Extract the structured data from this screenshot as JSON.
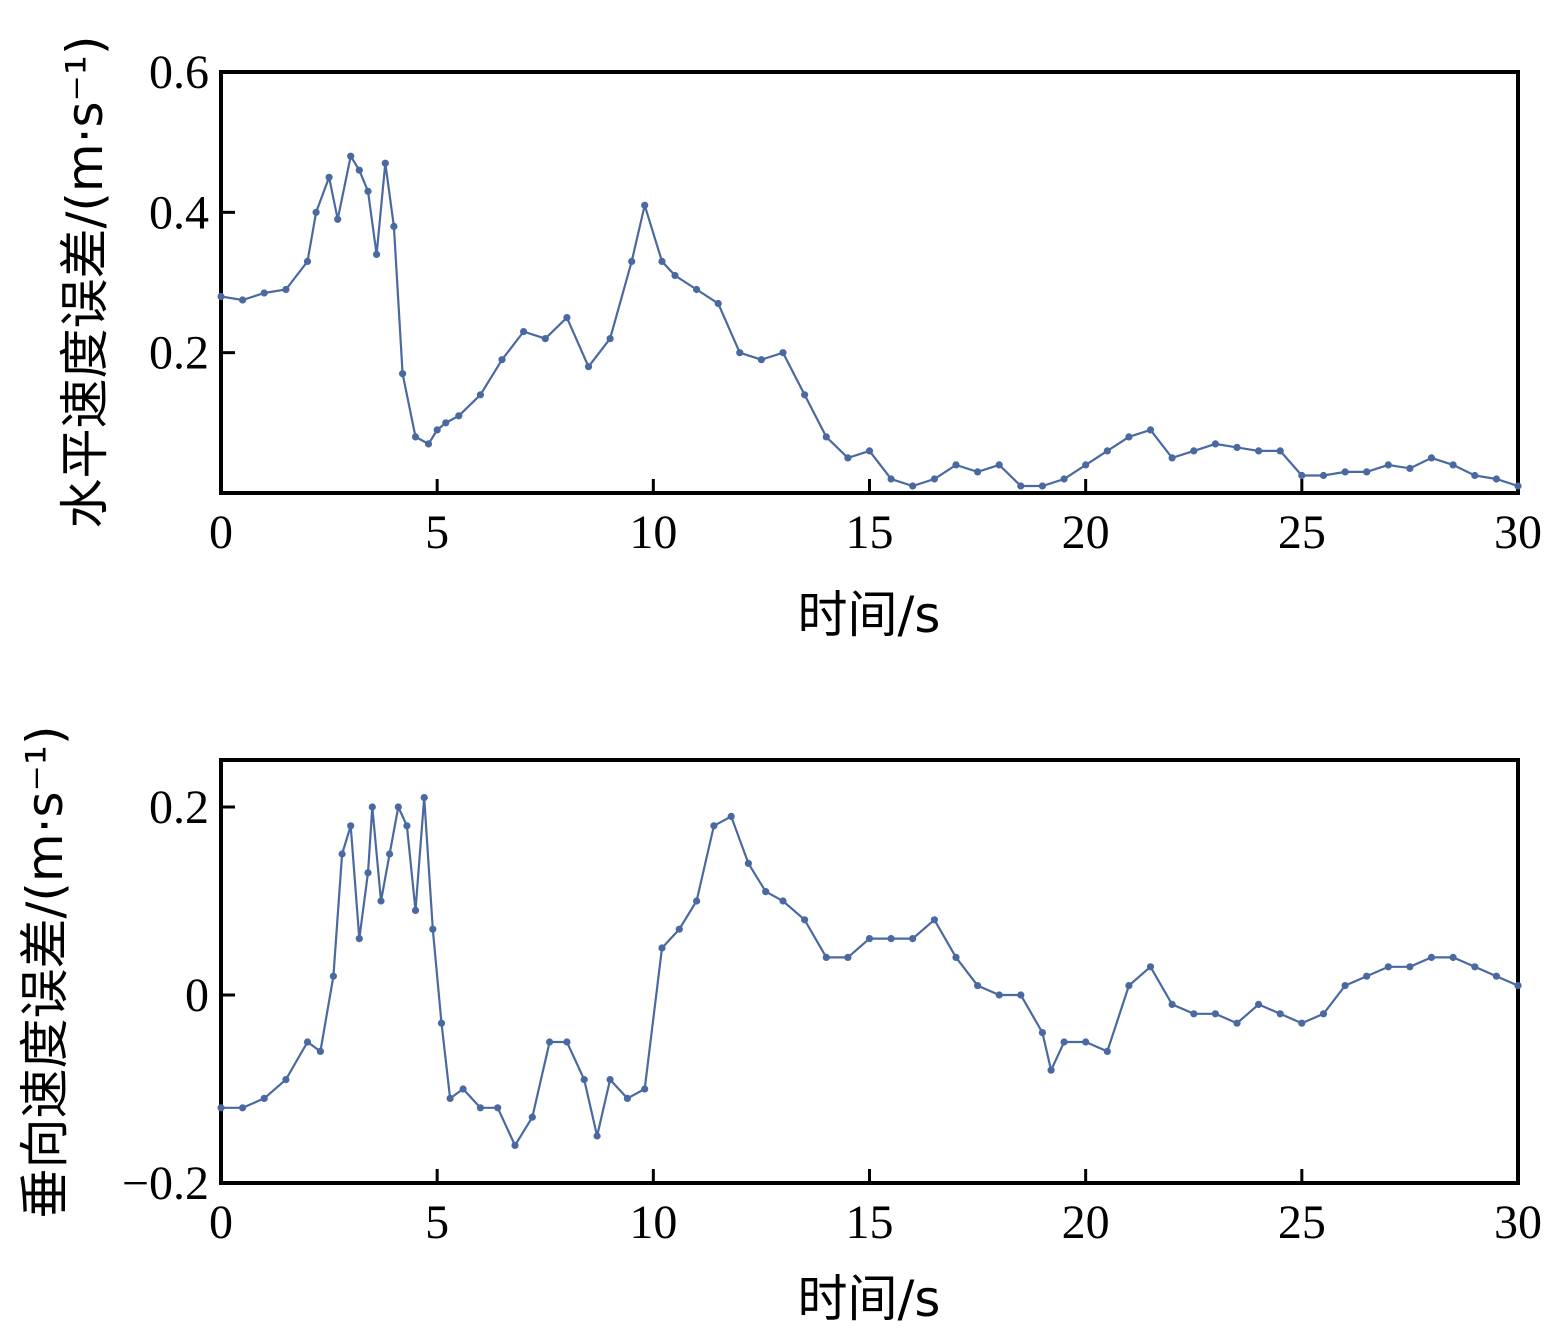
{
  "colors": {
    "series": "#4a69a0",
    "axis": "#000000",
    "background": "#ffffff"
  },
  "chart_data": [
    {
      "type": "line",
      "title": "",
      "xlabel": "时间/s",
      "ylabel": "水平速度误差/(m·s⁻¹)",
      "xlim": [
        0,
        30
      ],
      "ylim": [
        0,
        0.6
      ],
      "grid": false,
      "markers": true,
      "xticks": [
        0,
        5,
        10,
        15,
        20,
        25,
        30
      ],
      "xtick_labels": [
        "0",
        "5",
        "10",
        "15",
        "20",
        "25",
        "30"
      ],
      "yticks": [
        0.2,
        0.4,
        0.6
      ],
      "ytick_labels": [
        "0.2",
        "0.4",
        "0.6"
      ],
      "x": [
        0,
        0.5,
        1.0,
        1.5,
        2.0,
        2.2,
        2.5,
        2.7,
        3.0,
        3.2,
        3.4,
        3.6,
        3.8,
        4.0,
        4.2,
        4.5,
        4.8,
        5.0,
        5.2,
        5.5,
        6.0,
        6.5,
        7.0,
        7.5,
        8.0,
        8.5,
        9.0,
        9.5,
        9.8,
        10.2,
        10.5,
        11.0,
        11.5,
        12.0,
        12.5,
        13.0,
        13.5,
        14.0,
        14.5,
        15.0,
        15.5,
        16.0,
        16.5,
        17.0,
        17.5,
        18.0,
        18.5,
        19.0,
        19.5,
        20.0,
        20.5,
        21.0,
        21.5,
        22.0,
        22.5,
        23.0,
        23.5,
        24.0,
        24.5,
        25.0,
        25.5,
        26.0,
        26.5,
        27.0,
        27.5,
        28.0,
        28.5,
        29.0,
        29.5,
        30.0
      ],
      "y": [
        0.28,
        0.275,
        0.285,
        0.29,
        0.33,
        0.4,
        0.45,
        0.39,
        0.48,
        0.46,
        0.43,
        0.34,
        0.47,
        0.38,
        0.17,
        0.08,
        0.07,
        0.09,
        0.1,
        0.11,
        0.14,
        0.19,
        0.23,
        0.22,
        0.25,
        0.18,
        0.22,
        0.33,
        0.41,
        0.33,
        0.31,
        0.29,
        0.27,
        0.2,
        0.19,
        0.2,
        0.14,
        0.08,
        0.05,
        0.06,
        0.02,
        0.01,
        0.02,
        0.04,
        0.03,
        0.04,
        0.01,
        0.01,
        0.02,
        0.04,
        0.06,
        0.08,
        0.09,
        0.05,
        0.06,
        0.07,
        0.065,
        0.06,
        0.06,
        0.025,
        0.025,
        0.03,
        0.03,
        0.04,
        0.035,
        0.05,
        0.04,
        0.025,
        0.02,
        0.01
      ]
    },
    {
      "type": "line",
      "title": "",
      "xlabel": "时间/s",
      "ylabel": "垂向速度误差/(m·s⁻¹)",
      "xlim": [
        0,
        30
      ],
      "ylim": [
        -0.2,
        0.25
      ],
      "grid": false,
      "markers": true,
      "xticks": [
        0,
        5,
        10,
        15,
        20,
        25,
        30
      ],
      "xtick_labels": [
        "0",
        "5",
        "10",
        "15",
        "20",
        "25",
        "30"
      ],
      "yticks": [
        -0.2,
        0,
        0.2
      ],
      "ytick_labels": [
        "−0.2",
        "0",
        "0.2"
      ],
      "x": [
        0,
        0.5,
        1.0,
        1.5,
        2.0,
        2.3,
        2.6,
        2.8,
        3.0,
        3.2,
        3.4,
        3.5,
        3.7,
        3.9,
        4.1,
        4.3,
        4.5,
        4.7,
        4.9,
        5.1,
        5.3,
        5.6,
        6.0,
        6.4,
        6.8,
        7.2,
        7.6,
        8.0,
        8.4,
        8.7,
        9.0,
        9.4,
        9.8,
        10.2,
        10.6,
        11.0,
        11.4,
        11.8,
        12.2,
        12.6,
        13.0,
        13.5,
        14.0,
        14.5,
        15.0,
        15.5,
        16.0,
        16.5,
        17.0,
        17.5,
        18.0,
        18.5,
        19.0,
        19.2,
        19.5,
        20.0,
        20.5,
        21.0,
        21.5,
        22.0,
        22.5,
        23.0,
        23.5,
        24.0,
        24.5,
        25.0,
        25.5,
        26.0,
        26.5,
        27.0,
        27.5,
        28.0,
        28.5,
        29.0,
        29.5,
        30.0
      ],
      "y": [
        -0.12,
        -0.12,
        -0.11,
        -0.09,
        -0.05,
        -0.06,
        0.02,
        0.15,
        0.18,
        0.06,
        0.13,
        0.2,
        0.1,
        0.15,
        0.2,
        0.18,
        0.09,
        0.21,
        0.07,
        -0.03,
        -0.11,
        -0.1,
        -0.12,
        -0.12,
        -0.16,
        -0.13,
        -0.05,
        -0.05,
        -0.09,
        -0.15,
        -0.09,
        -0.11,
        -0.1,
        0.05,
        0.07,
        0.1,
        0.18,
        0.19,
        0.14,
        0.11,
        0.1,
        0.08,
        0.04,
        0.04,
        0.06,
        0.06,
        0.06,
        0.08,
        0.04,
        0.01,
        0.0,
        0.0,
        -0.04,
        -0.08,
        -0.05,
        -0.05,
        -0.06,
        0.01,
        0.03,
        -0.01,
        -0.02,
        -0.02,
        -0.03,
        -0.01,
        -0.02,
        -0.03,
        -0.02,
        0.01,
        0.02,
        0.03,
        0.03,
        0.04,
        0.04,
        0.03,
        0.02,
        0.01
      ]
    }
  ]
}
